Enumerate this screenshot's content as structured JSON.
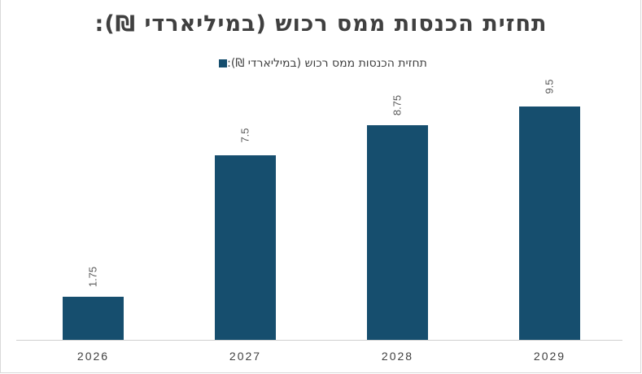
{
  "chart_data": {
    "type": "bar",
    "title": "תחזית הכנסות ממס רכוש (במיליארדי ₪):",
    "legend": [
      "תחזית הכנסות ממס רכוש (במיליארדי ₪):"
    ],
    "legend_position": "top",
    "categories": [
      "2026",
      "2027",
      "2028",
      "2029"
    ],
    "series": [
      {
        "name": "תחזית הכנסות ממס רכוש (במיליארדי ₪):",
        "values": [
          1.75,
          7.5,
          8.75,
          9.5
        ],
        "color": "#164e6e"
      }
    ],
    "value_labels": [
      "1.75",
      "7.5",
      "8.75",
      "9.5"
    ],
    "xlabel": "",
    "ylabel": "",
    "ylim": [
      0,
      10
    ],
    "grid": false
  }
}
